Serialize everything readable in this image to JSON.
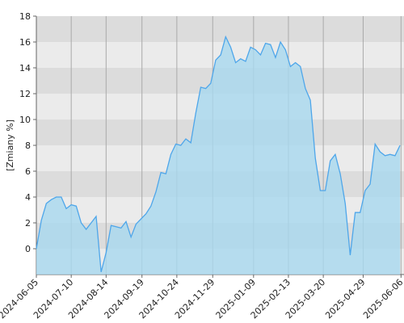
{
  "chart_data": {
    "type": "area",
    "y_label": "[Zmiany %]",
    "x": [
      "2024-06-05",
      "2024-06-10",
      "2024-06-15",
      "2024-06-20",
      "2024-06-25",
      "2024-06-30",
      "2024-07-05",
      "2024-07-10",
      "2024-07-15",
      "2024-07-20",
      "2024-07-25",
      "2024-07-30",
      "2024-08-04",
      "2024-08-09",
      "2024-08-14",
      "2024-08-19",
      "2024-08-24",
      "2024-08-29",
      "2024-09-03",
      "2024-09-08",
      "2024-09-13",
      "2024-09-18",
      "2024-09-23",
      "2024-09-28",
      "2024-10-03",
      "2024-10-08",
      "2024-10-13",
      "2024-10-18",
      "2024-10-23",
      "2024-10-28",
      "2024-11-02",
      "2024-11-07",
      "2024-11-12",
      "2024-11-17",
      "2024-11-22",
      "2024-11-27",
      "2024-12-02",
      "2024-12-07",
      "2024-12-12",
      "2024-12-17",
      "2024-12-22",
      "2024-12-27",
      "2025-01-01",
      "2025-01-06",
      "2025-01-11",
      "2025-01-16",
      "2025-01-21",
      "2025-01-26",
      "2025-01-31",
      "2025-02-05",
      "2025-02-10",
      "2025-02-15",
      "2025-02-20",
      "2025-02-25",
      "2025-03-02",
      "2025-03-07",
      "2025-03-12",
      "2025-03-17",
      "2025-03-22",
      "2025-03-27",
      "2025-04-01",
      "2025-04-06",
      "2025-04-11",
      "2025-04-16",
      "2025-04-21",
      "2025-04-26",
      "2025-05-01",
      "2025-05-06",
      "2025-05-11",
      "2025-05-16",
      "2025-05-21",
      "2025-05-26",
      "2025-05-31",
      "2025-06-05"
    ],
    "series": [
      {
        "color": "#4ea6ea",
        "fill": "#a8d8ef",
        "values": [
          0,
          2.2,
          3.5,
          3.8,
          4.0,
          4.0,
          3.1,
          3.4,
          3.3,
          2.0,
          1.5,
          2.0,
          2.5,
          -1.8,
          -0.3,
          1.8,
          1.7,
          1.6,
          2.1,
          0.9,
          1.9,
          2.3,
          2.7,
          3.3,
          4.4,
          5.9,
          5.8,
          7.3,
          8.1,
          8.0,
          8.5,
          8.2,
          10.5,
          12.5,
          12.4,
          12.8,
          14.6,
          15.0,
          16.4,
          15.6,
          14.4,
          14.7,
          14.5,
          15.6,
          15.4,
          15.0,
          15.9,
          15.8,
          14.8,
          16.0,
          15.4,
          14.1,
          14.4,
          14.1,
          12.4,
          11.5,
          7.0,
          4.5,
          4.5,
          6.8,
          7.3,
          5.8,
          3.5,
          -0.5,
          2.8,
          2.8,
          4.5,
          5.0,
          8.1,
          7.5,
          7.2,
          7.3,
          7.2,
          8.0
        ]
      }
    ],
    "xlim": [
      "2024-06-05",
      "2025-06-09"
    ],
    "xticks": [
      "2024-06-05",
      "2024-07-10",
      "2024-08-14",
      "2024-09-19",
      "2024-10-24",
      "2024-11-29",
      "2025-01-09",
      "2025-02-13",
      "2025-03-20",
      "2025-04-29",
      "2025-06-06"
    ],
    "ylim": [
      -2,
      18
    ],
    "yticks": [
      0,
      2,
      4,
      6,
      8,
      10,
      12,
      14,
      16,
      18
    ],
    "grid": true
  }
}
